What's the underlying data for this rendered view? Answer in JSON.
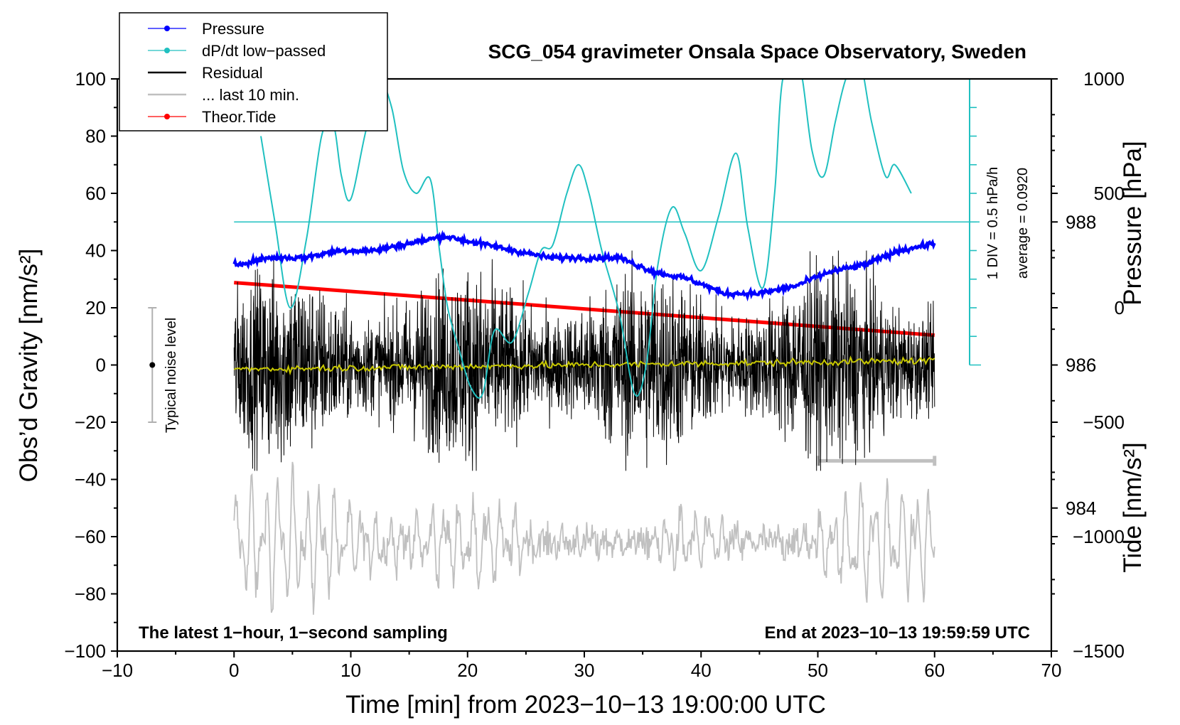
{
  "chart_data": {
    "type": "line",
    "title": "SCG_054 gravimeter Onsala Space Observatory, Sweden",
    "xlabel": "Time [min] from 2023−10−13 19:00:00 UTC",
    "ylabel_left": "Obs’d Gravity [nm/s²]",
    "ylabel_pressure": "Pressure [hPa]",
    "ylabel_tide": "Tide [nm/s²]",
    "xlim": [
      -10,
      70
    ],
    "ylim": [
      -100,
      100
    ],
    "pressure_lim": [
      982,
      990
    ],
    "tide_lim": [
      -1500,
      1000
    ],
    "x_ticks": [
      -10,
      0,
      10,
      20,
      30,
      40,
      50,
      60,
      70
    ],
    "x_tick_labels": [
      "−10",
      "0",
      "10",
      "20",
      "30",
      "40",
      "50",
      "60",
      "70"
    ],
    "y_ticks": [
      -100,
      -80,
      -60,
      -40,
      -20,
      0,
      20,
      40,
      60,
      80,
      100
    ],
    "y_tick_labels": [
      "−100",
      "−80",
      "−60",
      "−40",
      "−20",
      "0",
      "20",
      "40",
      "60",
      "80",
      "100"
    ],
    "pressure_ticks": [
      984,
      986,
      988
    ],
    "pressure_tick_labels": [
      "984",
      "986",
      "988"
    ],
    "tide_ticks": [
      -1500,
      -1000,
      -500,
      0,
      500,
      1000
    ],
    "tide_tick_labels": [
      "−1500",
      "−1000",
      "−500",
      "0",
      "500",
      "1000"
    ],
    "legend": {
      "position": "top-left",
      "entries": [
        {
          "label": "Pressure",
          "color": "#0000ff",
          "marker": true
        },
        {
          "label": "dP/dt low−passed",
          "color": "#20c0c0",
          "marker": true
        },
        {
          "label": "Residual",
          "color": "#000000",
          "marker": false
        },
        {
          "label": "... last 10 min.",
          "color": "#c0c0c0",
          "marker": false
        },
        {
          "label": "Theor.Tide",
          "color": "#ff0000",
          "marker": true
        }
      ]
    },
    "notes": {
      "bottom_left": "The latest 1−hour, 1−second sampling",
      "bottom_right": "End at 2023−10−13 19:59:59 UTC",
      "noise_label": "Typical noise level",
      "div_label": "1 DIV = 0.5 hPa/h",
      "average_label": "average = 0.0920"
    },
    "noise_bar": {
      "x": -7,
      "center": 0,
      "half_range": 20
    },
    "dpdt_scale": {
      "x": 63,
      "baseline_y": 0,
      "zero_line_y": 50,
      "top_y": 100,
      "div_step": 10
    },
    "series": [
      {
        "name": "Pressure",
        "color": "#0000ff",
        "axis": "pressure",
        "x": [
          0,
          3,
          6,
          9,
          12,
          15,
          18,
          21,
          24,
          27,
          30,
          33,
          36,
          39,
          42,
          45,
          48,
          51,
          54,
          57,
          60
        ],
        "values": [
          987.4,
          987.5,
          987.5,
          987.6,
          987.6,
          987.7,
          987.8,
          987.7,
          987.6,
          987.5,
          987.5,
          987.5,
          987.3,
          987.2,
          987.0,
          987.0,
          987.1,
          987.3,
          987.4,
          987.6,
          987.7
        ]
      },
      {
        "name": "dP/dt low−passed",
        "color": "#20c0c0",
        "axis": "left",
        "x": [
          2.3,
          3.5,
          4.8,
          6.2,
          7.5,
          8.5,
          9.2,
          10.0,
          11.3,
          12.5,
          13.5,
          14.5,
          15.6,
          16.8,
          17.6,
          18.3,
          19.3,
          20.3,
          21.3,
          22.3,
          23.8,
          25.2,
          26.3,
          27.3,
          28.5,
          29.5,
          30.4,
          31.5,
          33.0,
          34.3,
          35.3,
          36.3,
          37.5,
          38.6,
          40.0,
          41.5,
          43.0,
          44.0,
          45.3,
          46.3,
          47.0,
          48.4,
          49.5,
          50.5,
          51.5,
          52.4,
          53.5,
          54.6,
          55.8,
          56.6,
          58.0
        ],
        "values": [
          80,
          50,
          20,
          44,
          80,
          84,
          66,
          58,
          82,
          98,
          90,
          68,
          60,
          65,
          40,
          20,
          5,
          -8,
          -10,
          12,
          8,
          25,
          40,
          42,
          60,
          70,
          60,
          40,
          18,
          -10,
          0,
          35,
          55,
          46,
          33,
          52,
          74,
          48,
          27,
          60,
          100,
          105,
          75,
          66,
          85,
          100,
          108,
          85,
          66,
          70,
          60
        ]
      },
      {
        "name": "Residual",
        "color": "#000000",
        "axis": "left",
        "x_range": [
          0,
          60
        ],
        "center": 0,
        "typical_amplitude": 15,
        "min": -37,
        "max": 40
      },
      {
        "name": "Residual smoothed",
        "color": "#c8c800",
        "axis": "left",
        "x": [
          0,
          10,
          20,
          30,
          40,
          50,
          60
        ],
        "values": [
          -1.5,
          -1,
          -0.5,
          0,
          0.5,
          1,
          1.5
        ]
      },
      {
        "name": "... last 10 min.",
        "color": "#c0c0c0",
        "axis": "left",
        "x_range": [
          0,
          60
        ],
        "center": -62,
        "typical_amplitude": 14,
        "min": -92,
        "max": -25,
        "bar": {
          "x_start": 50,
          "x_end": 60,
          "y": -33.5
        }
      },
      {
        "name": "Theor.Tide",
        "color": "#ff0000",
        "axis": "tide",
        "x": [
          0,
          60
        ],
        "values": [
          110,
          -120
        ]
      }
    ]
  }
}
